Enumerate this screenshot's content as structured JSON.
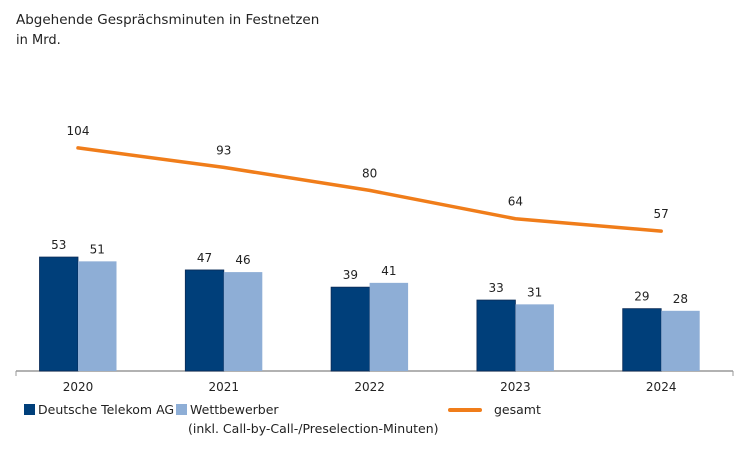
{
  "chart_data": {
    "type": "bar+line",
    "title": "Abgehende Gesprächsminuten in Festnetzen",
    "subtitle": "in Mrd.",
    "categories": [
      "2020",
      "2021",
      "2022",
      "2023",
      "2024"
    ],
    "series": [
      {
        "name": "Deutsche Telekom AG",
        "type": "bar",
        "color": "#003f7a",
        "values": [
          53,
          47,
          39,
          33,
          29
        ]
      },
      {
        "name": "Wettbewerber",
        "name_note": "(inkl. Call-by-Call-/Preselection-Minuten)",
        "type": "bar",
        "color": "#8eaed6",
        "values": [
          51,
          46,
          41,
          31,
          28
        ]
      },
      {
        "name": "gesamt",
        "type": "line",
        "color": "#f07d1a",
        "values": [
          104,
          93,
          80,
          64,
          57
        ]
      }
    ],
    "grid": false,
    "legend_position": "bottom"
  }
}
